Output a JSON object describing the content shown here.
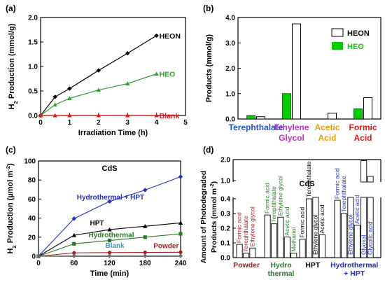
{
  "colors": {
    "black": "#000000",
    "green": "#2aa52a",
    "red": "#e01818",
    "blue": "#1f2fc8",
    "dkred": "#a02020",
    "dkgreen": "#2a7a2a",
    "lightblue": "#3a9ac8",
    "gray": "#6a6a6a",
    "pgreen": "#00cc00",
    "tblue": "#2255cc",
    "tpurple": "#c030c0",
    "torange": "#e8a000",
    "tred": "#e01818"
  },
  "chart_data": [
    {
      "panel": "(a)",
      "type": "line",
      "ylabel": "H2 Production (mmol/g)",
      "xlabel": "Irradiation Time (h)",
      "xlim": [
        0,
        5
      ],
      "ylim": [
        0,
        2.0
      ],
      "xticks": [
        "0",
        "1",
        "2",
        "3",
        "4",
        "5"
      ],
      "yticks": [
        "0.0",
        "0.5",
        "1.0",
        "1.5",
        "2.0"
      ],
      "series": [
        {
          "name": "HEON",
          "color": "black",
          "marker": "diamond",
          "x": [
            0,
            0.5,
            1,
            2,
            3,
            4
          ],
          "y": [
            0,
            0.38,
            0.55,
            0.92,
            1.27,
            1.63
          ]
        },
        {
          "name": "HEO",
          "color": "green",
          "marker": "triangle",
          "x": [
            0,
            0.5,
            1,
            2,
            3,
            4
          ],
          "y": [
            0,
            0.22,
            0.35,
            0.52,
            0.65,
            0.85
          ]
        },
        {
          "name": "Blank",
          "color": "red",
          "marker": "triangle",
          "x": [
            0,
            0.5,
            1,
            2,
            3,
            4
          ],
          "y": [
            0,
            0,
            0,
            0,
            0,
            0
          ]
        }
      ]
    },
    {
      "panel": "(b)",
      "type": "bar",
      "ylabel": "Products (mmol/g)",
      "ylim": [
        0,
        4
      ],
      "yticks": [
        "0.0",
        "1.0",
        "2.0",
        "3.0",
        "4.0"
      ],
      "legend": [
        "HEON",
        "HEO"
      ],
      "categories": [
        {
          "lines": [
            "Terephthalate"
          ],
          "color": "tblue"
        },
        {
          "lines": [
            "Ethylene",
            "Glycol"
          ],
          "color": "tpurple"
        },
        {
          "lines": [
            "Acetic",
            "Acid"
          ],
          "color": "torange"
        },
        {
          "lines": [
            "Formic",
            "Acid"
          ],
          "color": "tred"
        }
      ],
      "series": [
        {
          "name": "HEO",
          "values": [
            0.14,
            1.0,
            0,
            0.4
          ]
        },
        {
          "name": "HEON",
          "values": [
            0.09,
            3.75,
            0.23,
            0.84
          ]
        }
      ]
    },
    {
      "panel": "(c)",
      "type": "line",
      "title": "CdS",
      "ylabel": "H2 Production (µmol m-2)",
      "xlabel": "Time (min)",
      "xlim": [
        0,
        240
      ],
      "ylim": [
        0,
        100
      ],
      "xticks": [
        "0",
        "60",
        "120",
        "180",
        "240"
      ],
      "yticks": [
        "0",
        "20",
        "40",
        "60",
        "80",
        "100"
      ],
      "series": [
        {
          "name": "Hydrothermal + HPT",
          "color": "blue",
          "marker": "diamond",
          "x": [
            0,
            60,
            120,
            180,
            240
          ],
          "y": [
            0,
            39.5,
            57.5,
            69.5,
            83.5
          ]
        },
        {
          "name": "HPT",
          "color": "black",
          "marker": "triangle",
          "x": [
            0,
            60,
            120,
            180,
            240
          ],
          "y": [
            0,
            22,
            28,
            31.5,
            35
          ]
        },
        {
          "name": "Hydrothermal",
          "color": "dkgreen",
          "marker": "square",
          "x": [
            0,
            60,
            120,
            180,
            240
          ],
          "y": [
            0,
            13,
            16.5,
            20,
            23.5
          ]
        },
        {
          "name": "Powder",
          "color": "dkred",
          "marker": "circle",
          "x": [
            0,
            60,
            120,
            180,
            240
          ],
          "y": [
            0,
            3.5,
            3.8,
            4,
            4.2
          ]
        },
        {
          "name": "Blank",
          "color": "gray",
          "marker": "diamond",
          "x": [
            0,
            60,
            120,
            180,
            240
          ],
          "y": [
            0,
            0.3,
            0.3,
            0.3,
            0.3
          ]
        }
      ],
      "label_colors": {
        "Blank": "lightblue"
      }
    },
    {
      "panel": "(d)",
      "type": "bar",
      "title": "CdS",
      "ylabel": "Amount of Photodegraded Products (mmol m-2)",
      "upper_ylim": [
        1.0,
        2.0
      ],
      "lower_ylim": [
        0,
        0.4
      ],
      "upper_yticks": [
        "1.0",
        "2.0"
      ],
      "lower_yticks": [
        "0.0",
        "0.1",
        "0.2",
        "0.3",
        "0.4"
      ],
      "groups": [
        {
          "label": [
            "Powder"
          ],
          "color": "dkred",
          "bars": [
            {
              "name": "Formic acid",
              "value": 0.09
            },
            {
              "name": "Terephthalate",
              "value": 0.03
            },
            {
              "name": "Ethylene glycol",
              "value": 0.065
            }
          ]
        },
        {
          "label": [
            "Hydro",
            "thermal"
          ],
          "color": "dkgreen",
          "bars": [
            {
              "name": "Formic acid",
              "value": 0.29
            },
            {
              "name": "Terephthalate",
              "value": 0.23
            },
            {
              "name": "Ethylene glycol",
              "value": 0.275
            },
            {
              "name": "Acetic acid",
              "value": 0.14
            },
            {
              "name": "Methanol",
              "value": 0.03
            }
          ]
        },
        {
          "label": [
            "HPT"
          ],
          "color": "black",
          "bars": [
            {
              "name": "Formic acid",
              "value": 0.125
            },
            {
              "name": "Terephthalate",
              "value": 0.4
            },
            {
              "name": "Ethylene glycol",
              "value": 0.41
            },
            {
              "name": "Acetic acid",
              "value": 0.155
            }
          ]
        },
        {
          "label": [
            "Hydrothermal",
            "+ HPT"
          ],
          "color": "blue",
          "bars": [
            {
              "name": "Formic acid",
              "value": 0.39
            },
            {
              "name": "Terephthalate",
              "value": 0.3
            },
            {
              "name": "Ethylene glycol",
              "value": 0.85
            },
            {
              "name": "Acetic acid",
              "value": 0.22
            },
            {
              "name": "Glyoxal",
              "value": 1.95
            },
            {
              "name": "Glycolic acid",
              "value": 1.2
            }
          ]
        }
      ]
    }
  ]
}
